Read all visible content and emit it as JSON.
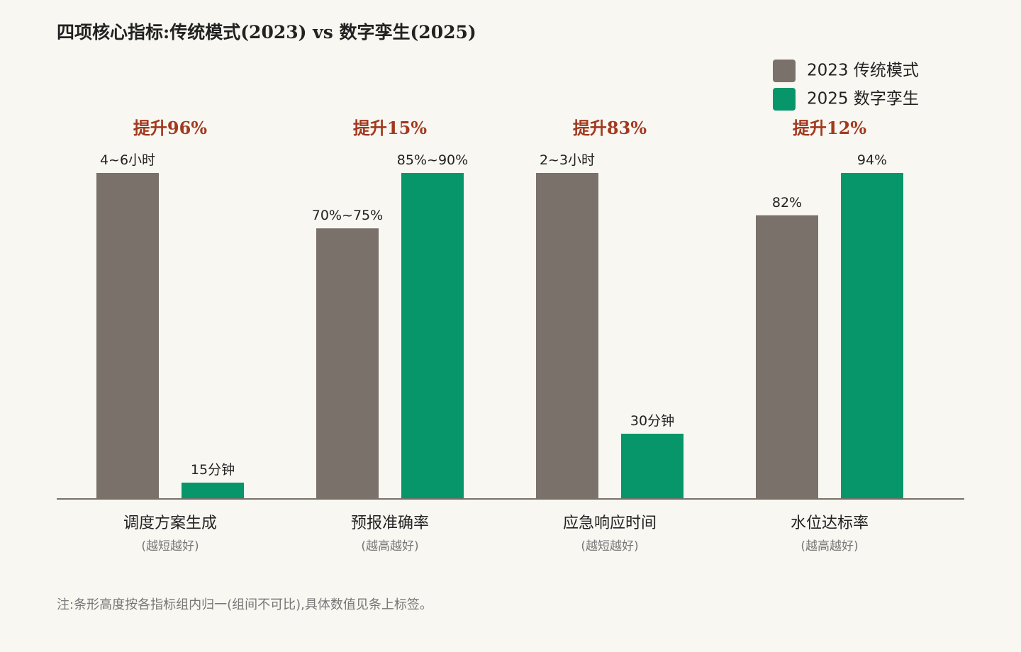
{
  "chart_data": {
    "type": "bar",
    "title": "四项核心指标:传统模式(2023) vs 数字孪生(2025)",
    "legend_position": "top-right",
    "grid": false,
    "normalization": "per-category",
    "series": [
      {
        "name": "2023 传统模式",
        "color": "#7a716b",
        "values": [
          1.0,
          0.83,
          1.0,
          0.87
        ],
        "labels": [
          "4~6小时",
          "70%~75%",
          "2~3小时",
          "82%"
        ]
      },
      {
        "name": "2025 数字孪生",
        "color": "#06966a",
        "values": [
          0.05,
          1.0,
          0.2,
          1.0
        ],
        "labels": [
          "15分钟",
          "85%~90%",
          "30分钟",
          "94%"
        ]
      }
    ],
    "categories": [
      {
        "name": "调度方案生成",
        "note": "(越短越好)",
        "improvement": "提升96%"
      },
      {
        "name": "预报准确率",
        "note": "(越高越好)",
        "improvement": "提升15%"
      },
      {
        "name": "应急响应时间",
        "note": "(越短越好)",
        "improvement": "提升83%"
      },
      {
        "name": "水位达标率",
        "note": "(越高越好)",
        "improvement": "提升12%"
      }
    ],
    "footnote": "注:条形高度按各指标组内归一(组间不可比),具体数值见条上标签。",
    "colors": {
      "background": "#f8f7f2",
      "improvement": "#a23a1f",
      "axis": "#7a716b",
      "label": "#222222",
      "note": "#777777"
    }
  }
}
